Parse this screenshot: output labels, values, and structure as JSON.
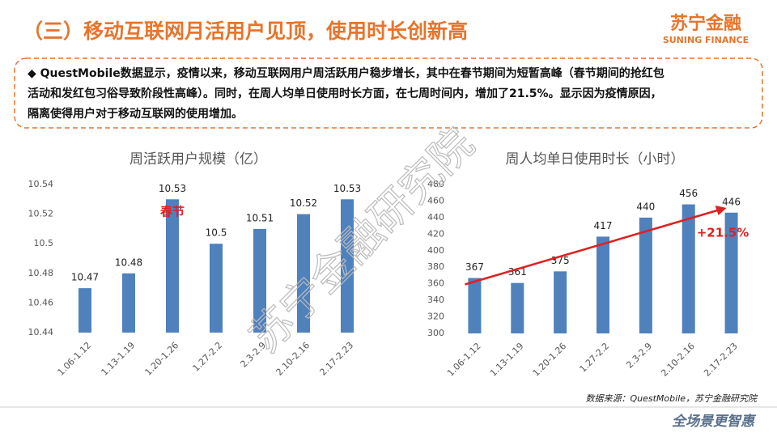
{
  "header": {
    "title": "（三）移动互联网月活用户见顶，使用时长创新高",
    "logo": "苏宁金融",
    "logo_en": "SUNING FINANCE"
  },
  "note": {
    "lines": [
      "◆ QuestMobile数据显示，疫情以来，移动互联网用户周活跃用户稳步增长，其中在春节期间为短暂高峰（春节期间的抢红包",
      "活动和发红包习俗导致阶段性高峰）。同时，在周人均单日使用时长方面，在七周时间内，增加了21.5%。显示因为疫情原因，",
      "隔离使得用户对于移动互联网的使用增加。"
    ]
  },
  "chart_data": [
    {
      "type": "bar",
      "title": "周活跃用户规模（亿）",
      "categories": [
        "1.06-1.12",
        "1.13-1.19",
        "1.20-1.26",
        "1.27-2.2",
        "2.3-2.9",
        "2.10-2.16",
        "2.17-2.23"
      ],
      "values": [
        10.47,
        10.48,
        10.53,
        10.5,
        10.51,
        10.52,
        10.53
      ],
      "color": "#4f81bd",
      "ylim": [
        10.44,
        10.54
      ],
      "yticks": [
        10.44,
        10.46,
        10.48,
        10.5,
        10.52,
        10.54
      ],
      "grid": false,
      "annotation": "春节"
    },
    {
      "type": "bar",
      "title": "周人均单日使用时长（小时）",
      "categories": [
        "1.06-1.12",
        "1.13-1.19",
        "1.20-1.26",
        "1.27-2.2",
        "2.3-2.9",
        "2.10-2.16",
        "2.17-2.23"
      ],
      "values": [
        367,
        361,
        375,
        417,
        440,
        456,
        446
      ],
      "color": "#4f81bd",
      "ylim": [
        300,
        480
      ],
      "yticks": [
        300,
        320,
        340,
        360,
        380,
        400,
        420,
        440,
        460,
        480
      ],
      "grid": false,
      "annotation": "+21.5%"
    }
  ],
  "source": "数据来源：QuestMobile，苏宁金融研究院",
  "watermark": "苏宁金融研究院",
  "footer_logo": "全场景更智惠"
}
